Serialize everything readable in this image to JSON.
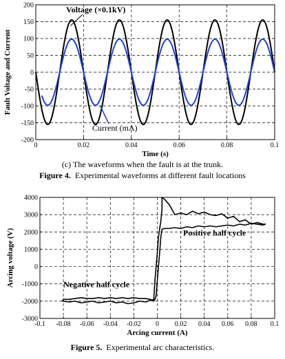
{
  "charts": {
    "waveform": {
      "subcaption": "(c) The waveforms when the fault is at the trunk.",
      "caption_label": "Figure 4.",
      "caption_text": "Experimental waveforms at different fault locations",
      "chart_data": {
        "type": "line",
        "xlabel": "Time (s)",
        "ylabel": "Fault Voltage and Current",
        "xlim": [
          0,
          0.1
        ],
        "ylim": [
          -200,
          200
        ],
        "xticks": [
          0,
          0.02,
          0.04,
          0.06,
          0.08,
          0.1
        ],
        "xtick_labels": [
          "0",
          "0.02",
          "0.04",
          "0.06",
          "0.08",
          "0.1"
        ],
        "yticks": [
          -200,
          -150,
          -100,
          -50,
          0,
          50,
          100,
          150,
          200
        ],
        "grid": true,
        "series": [
          {
            "name": "Voltage (×0.1kV)",
            "color": "#000000",
            "amplitude": 155,
            "frequency_hz": 50,
            "phase_offset_s": 0.01,
            "x_range": [
              0,
              0.1
            ]
          },
          {
            "name": "Current (mA)",
            "color": "#1f3fd6",
            "amplitude": 98,
            "frequency_hz": 50,
            "phase_offset_s": 0.01,
            "x_range": [
              0.0025,
              0.1
            ]
          }
        ],
        "annotations": [
          {
            "text": "Voltage (×0.1kV)",
            "points_to": {
              "x": 0.0145,
              "y": 150
            }
          },
          {
            "text": "Current (mA)",
            "points_to": {
              "x": 0.027,
              "y": -100
            }
          }
        ]
      }
    },
    "arc": {
      "caption_label": "Figure 5.",
      "caption_text": "Experimental arc characteristics.",
      "chart_data": {
        "type": "line",
        "xlabel": "Arcing current (A)",
        "ylabel": "Arcing voltage (V)",
        "xlim": [
          -0.1,
          0.1
        ],
        "ylim": [
          -3000,
          4000
        ],
        "xticks": [
          -0.1,
          -0.08,
          -0.06,
          -0.04,
          -0.02,
          0,
          0.02,
          0.04,
          0.06,
          0.08,
          0.1
        ],
        "xtick_labels": [
          "-0.1",
          "-0.08",
          "-0.06",
          "-0.04",
          "-0.02",
          "0",
          "0.02",
          "0.04",
          "0.06",
          "0.08",
          "0.1"
        ],
        "yticks": [
          -3000,
          -2000,
          -1000,
          0,
          1000,
          2000,
          3000,
          4000
        ],
        "grid": true,
        "series": [
          {
            "name": "",
            "color": "#000000",
            "x": [
              -0.081,
              -0.075,
              -0.07,
              -0.065,
              -0.06,
              -0.055,
              -0.05,
              -0.045,
              -0.04,
              -0.035,
              -0.03,
              -0.025,
              -0.02,
              -0.015,
              -0.01,
              -0.006,
              -0.003,
              -0.002,
              -0.001,
              0,
              0.001,
              0.002,
              0.003,
              0.004,
              0.004,
              0.006,
              0.01,
              0.015,
              0.02,
              0.025,
              0.03,
              0.035,
              0.04,
              0.045,
              0.05,
              0.055,
              0.06,
              0.065,
              0.07,
              0.075,
              0.08,
              0.085,
              0.09,
              0.092,
              0.09,
              0.085,
              0.08,
              0.075,
              0.07,
              0.065,
              0.06,
              0.055,
              0.05,
              0.045,
              0.04,
              0.035,
              0.03,
              0.025,
              0.02,
              0.015,
              0.01,
              0.006,
              0.004,
              0.003,
              0.002,
              0.001,
              0,
              -0.001,
              -0.002,
              -0.003,
              -0.004,
              -0.006,
              -0.01,
              -0.015,
              -0.02,
              -0.025,
              -0.03,
              -0.035,
              -0.04,
              -0.045,
              -0.05,
              -0.055,
              -0.06,
              -0.065,
              -0.07,
              -0.075,
              -0.08,
              -0.081
            ],
            "y": [
              -2000,
              -2050,
              -2000,
              -2100,
              -2050,
              -2000,
              -2100,
              -2050,
              -2000,
              -2100,
              -2050,
              -2150,
              -2100,
              -2000,
              -2050,
              -1950,
              -1900,
              -800,
              0,
              800,
              1700,
              2200,
              2600,
              3300,
              4000,
              3900,
              3600,
              3000,
              3100,
              3000,
              3200,
              3050,
              3150,
              3000,
              2950,
              3050,
              2800,
              2900,
              2600,
              2700,
              2450,
              2550,
              2450,
              2450,
              2400,
              2450,
              2500,
              2400,
              2450,
              2350,
              2400,
              2350,
              2300,
              2350,
              2300,
              2350,
              2250,
              2300,
              2200,
              2250,
              2200,
              2200,
              2150,
              1700,
              800,
              0,
              -800,
              -1700,
              -1900,
              -2000,
              -1950,
              -1900,
              -1850,
              -1850,
              -1800,
              -1850,
              -1800,
              -1850,
              -1800,
              -1850,
              -1800,
              -1850,
              -1850,
              -1800,
              -1850,
              -1900,
              -1900,
              -2000
            ]
          }
        ],
        "annotations": [
          {
            "text": "Positive half cycle",
            "anchor": {
              "x": 0.022,
              "y": 1800
            }
          },
          {
            "text": "Negative half cycle",
            "anchor": {
              "x": -0.08,
              "y": -1200
            }
          }
        ]
      }
    }
  },
  "colors": {
    "voltage": "#000000",
    "current": "#1f3fd6",
    "grid": "#000000"
  }
}
